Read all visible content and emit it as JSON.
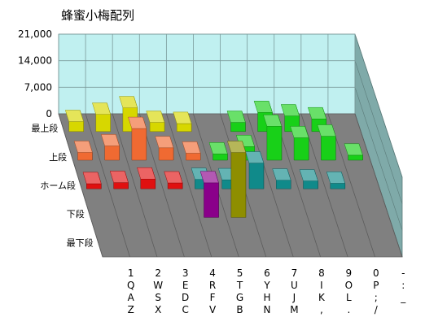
{
  "chart_data": {
    "type": "bar3d",
    "title": "蜂蜜小梅配列",
    "zlim": [
      0,
      21000
    ],
    "z_ticks": [
      "21,000",
      "14,000",
      "7,000",
      "0"
    ],
    "z_tick_values": [
      21000,
      14000,
      7000,
      0
    ],
    "grid": true,
    "rows": [
      "最上段",
      "上段",
      "ホーム段",
      "下段",
      "最下段"
    ],
    "columns": [
      [
        "1",
        "Q",
        "A",
        "Z"
      ],
      [
        "2",
        "W",
        "S",
        "X"
      ],
      [
        "3",
        "E",
        "D",
        "C"
      ],
      [
        "4",
        "R",
        "F",
        "V"
      ],
      [
        "5",
        "T",
        "G",
        "B"
      ],
      [
        "6",
        "Y",
        "H",
        "N"
      ],
      [
        "7",
        "U",
        "J",
        "M"
      ],
      [
        "8",
        "I",
        "K",
        ","
      ],
      [
        "9",
        "O",
        "L",
        "."
      ],
      [
        "0",
        "P",
        ";",
        "/"
      ],
      [
        "-",
        ":",
        "_",
        ""
      ]
    ],
    "colors": {
      "yellow": "#d7d700",
      "orange": "#f06a32",
      "red": "#e01010",
      "purple": "#8a008a",
      "olive": "#8e8e00",
      "green": "#18d018",
      "teal": "#108a8a",
      "back_wall": "#c0f0f0",
      "side_wall": "#7faaa9",
      "floor": "#808080"
    },
    "bars": [
      {
        "row": 0,
        "col": 0,
        "value": 2600,
        "color": "yellow"
      },
      {
        "row": 0,
        "col": 1,
        "value": 4500,
        "color": "yellow"
      },
      {
        "row": 0,
        "col": 2,
        "value": 6200,
        "color": "yellow"
      },
      {
        "row": 0,
        "col": 3,
        "value": 2400,
        "color": "yellow"
      },
      {
        "row": 0,
        "col": 4,
        "value": 2100,
        "color": "yellow"
      },
      {
        "row": 0,
        "col": 5,
        "value": 0,
        "color": "green"
      },
      {
        "row": 0,
        "col": 6,
        "value": 2400,
        "color": "green"
      },
      {
        "row": 0,
        "col": 7,
        "value": 5000,
        "color": "green"
      },
      {
        "row": 0,
        "col": 8,
        "value": 4100,
        "color": "green"
      },
      {
        "row": 0,
        "col": 9,
        "value": 3300,
        "color": "green"
      },
      {
        "row": 1,
        "col": 0,
        "value": 2000,
        "color": "orange"
      },
      {
        "row": 1,
        "col": 1,
        "value": 3700,
        "color": "orange"
      },
      {
        "row": 1,
        "col": 2,
        "value": 8200,
        "color": "orange"
      },
      {
        "row": 1,
        "col": 3,
        "value": 3200,
        "color": "orange"
      },
      {
        "row": 1,
        "col": 4,
        "value": 1800,
        "color": "orange"
      },
      {
        "row": 1,
        "col": 5,
        "value": 1600,
        "color": "green"
      },
      {
        "row": 1,
        "col": 6,
        "value": 3500,
        "color": "green"
      },
      {
        "row": 1,
        "col": 7,
        "value": 8800,
        "color": "green"
      },
      {
        "row": 1,
        "col": 8,
        "value": 5800,
        "color": "green"
      },
      {
        "row": 1,
        "col": 9,
        "value": 6200,
        "color": "green"
      },
      {
        "row": 1,
        "col": 10,
        "value": 1300,
        "color": "green"
      },
      {
        "row": 2,
        "col": 0,
        "value": 1300,
        "color": "red"
      },
      {
        "row": 2,
        "col": 1,
        "value": 1600,
        "color": "red"
      },
      {
        "row": 2,
        "col": 2,
        "value": 2500,
        "color": "red"
      },
      {
        "row": 2,
        "col": 3,
        "value": 1500,
        "color": "red"
      },
      {
        "row": 2,
        "col": 4,
        "value": 2400,
        "color": "teal"
      },
      {
        "row": 2,
        "col": 5,
        "value": 2300,
        "color": "teal"
      },
      {
        "row": 2,
        "col": 6,
        "value": 6600,
        "color": "teal"
      },
      {
        "row": 2,
        "col": 7,
        "value": 2200,
        "color": "teal"
      },
      {
        "row": 2,
        "col": 8,
        "value": 2000,
        "color": "teal"
      },
      {
        "row": 2,
        "col": 9,
        "value": 1400,
        "color": "teal"
      },
      {
        "row": 3,
        "col": 4,
        "value": 8800,
        "color": "purple"
      },
      {
        "row": 3,
        "col": 5,
        "value": 16500,
        "color": "olive"
      }
    ]
  }
}
